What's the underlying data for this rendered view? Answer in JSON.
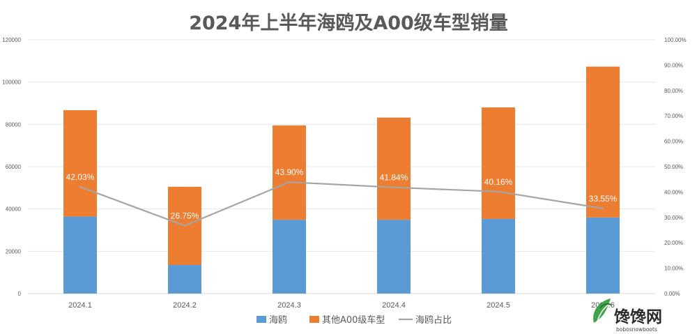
{
  "chart_data": {
    "type": "bar",
    "stacked": true,
    "title": "2024年上半年海鸥及A00级车型销量",
    "categories": [
      "2024.1",
      "2024.2",
      "2024.3",
      "2024.4",
      "2024.5",
      "2024.6"
    ],
    "series": [
      {
        "name": "海鸥",
        "type": "bar",
        "axis": "left",
        "color": "#5B9BD5",
        "values": [
          36400,
          13500,
          34900,
          34900,
          35300,
          36000
        ]
      },
      {
        "name": "其他A00级车型",
        "type": "bar",
        "axis": "left",
        "color": "#ED7D31",
        "values": [
          50300,
          37000,
          44600,
          48300,
          52700,
          71300
        ]
      },
      {
        "name": "海鸥占比",
        "type": "line",
        "axis": "right",
        "color": "#A5A5A5",
        "values": [
          42.03,
          26.75,
          43.9,
          41.84,
          40.16,
          33.55
        ],
        "labels": [
          "42.03%",
          "26.75%",
          "43.90%",
          "41.84%",
          "40.16%",
          "33.55%"
        ]
      }
    ],
    "ylim_left": [
      0,
      120000
    ],
    "yticks_left": [
      "0",
      "20000",
      "40000",
      "60000",
      "80000",
      "100000",
      "120000"
    ],
    "ylim_right": [
      0,
      100
    ],
    "yticks_right": [
      "0.00%",
      "10.00%",
      "20.00%",
      "30.00%",
      "40.00%",
      "50.00%",
      "60.00%",
      "70.00%",
      "80.00%",
      "90.00%",
      "100.00%"
    ],
    "grid": true,
    "legend": "bottom"
  },
  "watermark": {
    "name": "馋馋网",
    "sub": "bobosnowboots"
  }
}
